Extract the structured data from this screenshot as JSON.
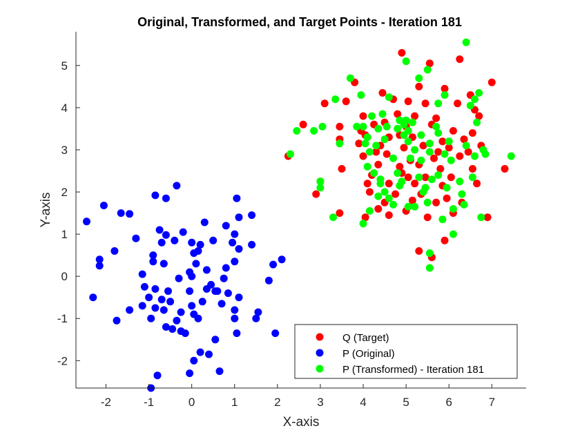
{
  "chart_data": {
    "type": "scatter",
    "title": "Original, Transformed, and Target Points - Iteration 181",
    "xlabel": "X-axis",
    "ylabel": "Y-axis",
    "xlim": [
      -2.7,
      7.8
    ],
    "ylim": [
      -2.65,
      5.8
    ],
    "xticks": [
      -2,
      -1,
      0,
      1,
      2,
      3,
      4,
      5,
      6,
      7
    ],
    "yticks": [
      -2,
      -1,
      0,
      1,
      2,
      3,
      4,
      5
    ],
    "grid": false,
    "legend_position": "bottom-right",
    "series": [
      {
        "name": "Q (Target)",
        "color": "#ff0000",
        "points": [
          [
            4.9,
            5.3
          ],
          [
            5.55,
            5.05
          ],
          [
            6.25,
            5.15
          ],
          [
            3.8,
            4.6
          ],
          [
            7.0,
            4.6
          ],
          [
            4.45,
            4.35
          ],
          [
            4.7,
            4.2
          ],
          [
            5.3,
            4.5
          ],
          [
            5.9,
            4.45
          ],
          [
            6.5,
            4.3
          ],
          [
            3.1,
            4.1
          ],
          [
            3.6,
            4.15
          ],
          [
            5.05,
            4.15
          ],
          [
            5.45,
            4.1
          ],
          [
            6.2,
            4.1
          ],
          [
            6.6,
            3.95
          ],
          [
            4.0,
            3.8
          ],
          [
            4.25,
            3.6
          ],
          [
            4.8,
            3.85
          ],
          [
            5.2,
            3.8
          ],
          [
            5.7,
            3.75
          ],
          [
            6.7,
            3.8
          ],
          [
            2.6,
            3.6
          ],
          [
            3.45,
            3.55
          ],
          [
            4.5,
            3.65
          ],
          [
            5.0,
            3.55
          ],
          [
            5.6,
            3.6
          ],
          [
            6.1,
            3.45
          ],
          [
            4.05,
            3.35
          ],
          [
            4.6,
            3.3
          ],
          [
            5.15,
            3.3
          ],
          [
            5.85,
            3.2
          ],
          [
            6.35,
            3.25
          ],
          [
            3.45,
            3.25
          ],
          [
            3.9,
            3.15
          ],
          [
            4.4,
            3.1
          ],
          [
            4.95,
            3.05
          ],
          [
            5.4,
            3.1
          ],
          [
            6.0,
            3.05
          ],
          [
            6.75,
            3.1
          ],
          [
            2.25,
            2.85
          ],
          [
            4.0,
            2.85
          ],
          [
            4.55,
            2.9
          ],
          [
            5.1,
            2.75
          ],
          [
            5.65,
            2.8
          ],
          [
            6.25,
            2.85
          ],
          [
            6.45,
            2.95
          ],
          [
            4.35,
            2.65
          ],
          [
            4.85,
            2.6
          ],
          [
            5.3,
            2.65
          ],
          [
            5.8,
            2.55
          ],
          [
            6.55,
            2.55
          ],
          [
            3.5,
            2.55
          ],
          [
            4.2,
            2.4
          ],
          [
            4.9,
            2.45
          ],
          [
            5.45,
            2.35
          ],
          [
            6.05,
            2.35
          ],
          [
            3.0,
            2.25
          ],
          [
            4.1,
            2.2
          ],
          [
            4.6,
            2.2
          ],
          [
            5.2,
            2.2
          ],
          [
            5.85,
            2.15
          ],
          [
            6.65,
            2.2
          ],
          [
            2.9,
            1.95
          ],
          [
            4.15,
            2.0
          ],
          [
            4.75,
            1.95
          ],
          [
            5.35,
            1.95
          ],
          [
            5.95,
            1.85
          ],
          [
            4.5,
            1.75
          ],
          [
            5.15,
            1.8
          ],
          [
            5.7,
            1.75
          ],
          [
            6.3,
            1.75
          ],
          [
            3.45,
            1.5
          ],
          [
            4.05,
            1.4
          ],
          [
            4.6,
            1.45
          ],
          [
            5.0,
            1.55
          ],
          [
            5.5,
            1.4
          ],
          [
            6.1,
            1.5
          ],
          [
            6.9,
            1.4
          ],
          [
            4.35,
            1.6
          ],
          [
            5.9,
            0.85
          ],
          [
            5.3,
            0.6
          ],
          [
            5.6,
            0.45
          ],
          [
            7.3,
            2.55
          ],
          [
            4.85,
            3.35
          ],
          [
            5.75,
            2.95
          ],
          [
            4.3,
            2.95
          ],
          [
            6.55,
            3.4
          ],
          [
            3.95,
            3.45
          ],
          [
            5.05,
            2.35
          ]
        ]
      },
      {
        "name": "P (Original)",
        "color": "#0000ff",
        "points": [
          [
            -0.35,
            2.15
          ],
          [
            -0.85,
            1.92
          ],
          [
            -0.6,
            1.85
          ],
          [
            1.05,
            1.85
          ],
          [
            -2.45,
            1.3
          ],
          [
            -2.05,
            1.68
          ],
          [
            -1.65,
            1.5
          ],
          [
            -1.45,
            1.48
          ],
          [
            -0.75,
            1.1
          ],
          [
            0.3,
            1.28
          ],
          [
            1.1,
            1.4
          ],
          [
            1.4,
            1.45
          ],
          [
            -1.3,
            0.9
          ],
          [
            -0.6,
            0.98
          ],
          [
            -0.2,
            1.05
          ],
          [
            0.8,
            1.2
          ],
          [
            1.0,
            1.0
          ],
          [
            -0.7,
            0.8
          ],
          [
            -0.4,
            0.85
          ],
          [
            0.0,
            0.8
          ],
          [
            0.2,
            0.75
          ],
          [
            0.5,
            0.85
          ],
          [
            0.95,
            0.8
          ],
          [
            1.4,
            0.75
          ],
          [
            -2.15,
            0.4
          ],
          [
            -1.8,
            0.6
          ],
          [
            -0.9,
            0.5
          ],
          [
            0.05,
            0.55
          ],
          [
            0.15,
            0.6
          ],
          [
            1.1,
            0.65
          ],
          [
            -2.15,
            0.25
          ],
          [
            -0.9,
            0.35
          ],
          [
            -0.65,
            0.3
          ],
          [
            0.1,
            0.3
          ],
          [
            0.35,
            0.15
          ],
          [
            0.8,
            0.2
          ],
          [
            1.0,
            0.35
          ],
          [
            1.9,
            0.28
          ],
          [
            -1.15,
            0.05
          ],
          [
            -0.3,
            -0.05
          ],
          [
            0.0,
            0.0
          ],
          [
            0.45,
            -0.2
          ],
          [
            0.75,
            -0.05
          ],
          [
            1.8,
            -0.1
          ],
          [
            -1.1,
            -0.25
          ],
          [
            -0.85,
            -0.3
          ],
          [
            -0.55,
            -0.35
          ],
          [
            -0.05,
            -0.35
          ],
          [
            0.35,
            -0.3
          ],
          [
            0.55,
            -0.35
          ],
          [
            0.85,
            -0.4
          ],
          [
            -2.3,
            -0.5
          ],
          [
            -1.0,
            -0.5
          ],
          [
            -0.7,
            -0.55
          ],
          [
            -0.5,
            -0.6
          ],
          [
            0.25,
            -0.6
          ],
          [
            1.1,
            -0.5
          ],
          [
            -1.15,
            -0.7
          ],
          [
            -0.85,
            -0.75
          ],
          [
            0.0,
            -0.7
          ],
          [
            0.7,
            -0.65
          ],
          [
            -1.45,
            -0.8
          ],
          [
            -0.65,
            -0.8
          ],
          [
            -0.25,
            -0.85
          ],
          [
            0.05,
            -0.9
          ],
          [
            1.0,
            -0.8
          ],
          [
            1.55,
            -0.85
          ],
          [
            -1.75,
            -1.05
          ],
          [
            -0.95,
            -1.0
          ],
          [
            -0.35,
            -1.05
          ],
          [
            0.15,
            -1.0
          ],
          [
            1.0,
            -1.0
          ],
          [
            1.5,
            -1.0
          ],
          [
            -0.6,
            -1.2
          ],
          [
            -0.45,
            -1.25
          ],
          [
            -0.25,
            -1.3
          ],
          [
            -0.15,
            -1.35
          ],
          [
            0.55,
            -1.5
          ],
          [
            1.05,
            -1.35
          ],
          [
            1.95,
            -1.35
          ],
          [
            0.2,
            -1.8
          ],
          [
            0.4,
            -1.85
          ],
          [
            0.05,
            -2.0
          ],
          [
            0.65,
            -2.25
          ],
          [
            -0.05,
            -2.3
          ],
          [
            -0.8,
            -2.35
          ],
          [
            -0.95,
            -2.65
          ],
          [
            2.1,
            0.4
          ],
          [
            0.6,
            -0.35
          ],
          [
            -0.05,
            0.1
          ]
        ]
      },
      {
        "name": "P (Transformed) - Iteration 181",
        "color": "#00ff00",
        "points": [
          [
            6.4,
            5.55
          ],
          [
            5.0,
            5.1
          ],
          [
            5.5,
            4.9
          ],
          [
            3.7,
            4.7
          ],
          [
            5.3,
            4.7
          ],
          [
            4.6,
            4.25
          ],
          [
            6.7,
            4.35
          ],
          [
            5.9,
            4.3
          ],
          [
            3.35,
            4.2
          ],
          [
            6.6,
            4.2
          ],
          [
            3.95,
            4.3
          ],
          [
            5.75,
            4.1
          ],
          [
            6.5,
            4.05
          ],
          [
            4.2,
            3.8
          ],
          [
            4.45,
            3.85
          ],
          [
            5.0,
            3.7
          ],
          [
            5.15,
            3.65
          ],
          [
            5.7,
            3.55
          ],
          [
            4.95,
            3.6
          ],
          [
            6.65,
            3.65
          ],
          [
            2.45,
            3.45
          ],
          [
            2.85,
            3.45
          ],
          [
            3.05,
            3.55
          ],
          [
            4.0,
            3.55
          ],
          [
            4.35,
            3.5
          ],
          [
            4.8,
            3.5
          ],
          [
            5.35,
            3.35
          ],
          [
            5.75,
            3.4
          ],
          [
            3.45,
            3.15
          ],
          [
            4.1,
            3.3
          ],
          [
            4.5,
            3.25
          ],
          [
            5.05,
            3.2
          ],
          [
            5.55,
            3.15
          ],
          [
            6.0,
            3.2
          ],
          [
            6.4,
            3.1
          ],
          [
            2.3,
            2.9
          ],
          [
            4.15,
            2.95
          ],
          [
            4.7,
            2.8
          ],
          [
            5.1,
            2.8
          ],
          [
            5.55,
            2.95
          ],
          [
            5.9,
            2.9
          ],
          [
            6.8,
            3.0
          ],
          [
            7.45,
            2.85
          ],
          [
            3.0,
            2.25
          ],
          [
            4.1,
            2.6
          ],
          [
            4.4,
            2.3
          ],
          [
            4.8,
            2.45
          ],
          [
            5.3,
            2.35
          ],
          [
            5.6,
            2.3
          ],
          [
            6.55,
            2.35
          ],
          [
            3.0,
            2.1
          ],
          [
            4.4,
            2.2
          ],
          [
            4.9,
            2.25
          ],
          [
            5.4,
            2.0
          ],
          [
            5.95,
            2.1
          ],
          [
            6.3,
            1.95
          ],
          [
            4.5,
            2.0
          ],
          [
            4.6,
            1.85
          ],
          [
            4.7,
            1.7
          ],
          [
            5.2,
            1.65
          ],
          [
            5.5,
            1.75
          ],
          [
            6.35,
            1.7
          ],
          [
            3.3,
            1.4
          ],
          [
            4.15,
            1.55
          ],
          [
            4.0,
            1.25
          ],
          [
            5.05,
            1.65
          ],
          [
            6.1,
            1.6
          ],
          [
            6.75,
            1.4
          ],
          [
            6.1,
            1.0
          ],
          [
            5.55,
            0.55
          ],
          [
            5.55,
            0.2
          ],
          [
            5.85,
            1.35
          ],
          [
            4.35,
            1.9
          ],
          [
            4.25,
            2.45
          ],
          [
            4.85,
            2.15
          ],
          [
            5.05,
            3.45
          ],
          [
            4.85,
            3.7
          ],
          [
            4.05,
            3.15
          ],
          [
            6.05,
            2.75
          ],
          [
            5.35,
            2.75
          ],
          [
            3.85,
            3.55
          ],
          [
            6.6,
            2.85
          ],
          [
            5.2,
            3.0
          ],
          [
            4.3,
            3.1
          ],
          [
            4.95,
            3.35
          ],
          [
            5.75,
            2.4
          ],
          [
            6.25,
            2.25
          ],
          [
            4.55,
            3.55
          ],
          [
            5.45,
            2.1
          ],
          [
            6.85,
            2.9
          ]
        ]
      }
    ]
  }
}
